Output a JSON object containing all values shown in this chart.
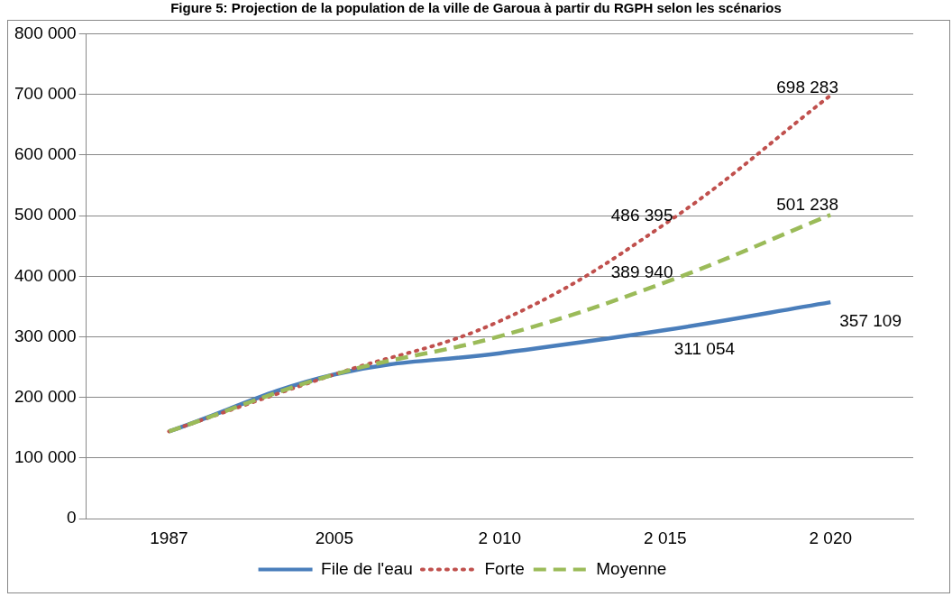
{
  "chart_data": {
    "type": "line",
    "title": "Figure 5: Projection de la population de la ville de Garoua à partir du RGPH selon les scénarios",
    "categories": [
      "1987",
      "2005",
      "2 010",
      "2 015",
      "2 020"
    ],
    "series": [
      {
        "name": "File de l'eau",
        "color": "#4a7ebb",
        "line_style": "solid",
        "values": [
          144000,
          238000,
          273000,
          311054,
          357109
        ],
        "value_labels": [
          null,
          null,
          null,
          "311 054",
          "357 109"
        ]
      },
      {
        "name": "Forte",
        "color": "#c0504d",
        "line_style": "dotted",
        "values": [
          144000,
          238000,
          326000,
          486395,
          698283
        ],
        "value_labels": [
          null,
          null,
          null,
          "486 395",
          "698 283"
        ]
      },
      {
        "name": "Moyenne",
        "color": "#9bbb59",
        "line_style": "dashed",
        "values": [
          144000,
          238000,
          301000,
          389940,
          501238
        ],
        "value_labels": [
          null,
          null,
          null,
          "389 940",
          "501 238"
        ]
      }
    ],
    "ylim": [
      0,
      800000
    ],
    "yticks": [
      {
        "value": 0,
        "label": "0"
      },
      {
        "value": 100000,
        "label": "100 000"
      },
      {
        "value": 200000,
        "label": "200 000"
      },
      {
        "value": 300000,
        "label": "300 000"
      },
      {
        "value": 400000,
        "label": "400 000"
      },
      {
        "value": 500000,
        "label": "500 000"
      },
      {
        "value": 600000,
        "label": "600 000"
      },
      {
        "value": 700000,
        "label": "700 000"
      },
      {
        "value": 800000,
        "label": "800 000"
      }
    ],
    "grid": "y",
    "legend": "bottom",
    "marker": "none"
  }
}
